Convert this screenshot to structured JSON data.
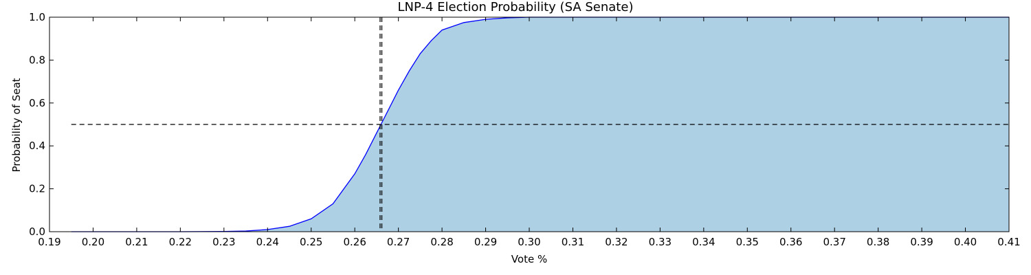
{
  "chart_data": {
    "type": "line",
    "title": "LNP-4 Election Probability (SA Senate)",
    "xlabel": "Vote %",
    "ylabel": "Probability of Seat",
    "xlim": [
      0.19,
      0.41
    ],
    "ylim": [
      0.0,
      1.0
    ],
    "x_ticks": [
      0.19,
      0.2,
      0.21,
      0.22,
      0.23,
      0.24,
      0.25,
      0.26,
      0.27,
      0.28,
      0.29,
      0.3,
      0.31,
      0.32,
      0.33,
      0.34,
      0.35,
      0.36,
      0.37,
      0.38,
      0.39,
      0.4,
      0.41
    ],
    "x_tick_labels": [
      "0.19",
      "0.20",
      "0.21",
      "0.22",
      "0.23",
      "0.24",
      "0.25",
      "0.26",
      "0.27",
      "0.28",
      "0.29",
      "0.30",
      "0.31",
      "0.32",
      "0.33",
      "0.34",
      "0.35",
      "0.36",
      "0.37",
      "0.38",
      "0.39",
      "0.40",
      "0.41"
    ],
    "y_ticks": [
      0.0,
      0.2,
      0.4,
      0.6,
      0.8,
      1.0
    ],
    "y_tick_labels": [
      "0.0",
      "0.2",
      "0.4",
      "0.6",
      "0.8",
      "1.0"
    ],
    "grid": false,
    "series": [
      {
        "color": "#0000ff",
        "x": [
          0.195,
          0.2,
          0.21,
          0.22,
          0.23,
          0.235,
          0.24,
          0.245,
          0.25,
          0.255,
          0.26,
          0.2625,
          0.265,
          0.266,
          0.2675,
          0.27,
          0.2725,
          0.275,
          0.2775,
          0.28,
          0.285,
          0.29,
          0.295,
          0.3,
          0.31,
          0.32,
          0.33,
          0.34,
          0.35,
          0.36,
          0.37,
          0.38,
          0.39,
          0.4,
          0.41
        ],
        "y": [
          0.0,
          0.0,
          0.0,
          0.0,
          0.001,
          0.003,
          0.01,
          0.025,
          0.06,
          0.13,
          0.27,
          0.36,
          0.46,
          0.5,
          0.56,
          0.66,
          0.75,
          0.83,
          0.89,
          0.94,
          0.975,
          0.99,
          0.997,
          1.0,
          1.0,
          1.0,
          1.0,
          1.0,
          1.0,
          1.0,
          1.0,
          1.0,
          1.0,
          1.0,
          1.0
        ]
      }
    ],
    "fill_color": "#aed0e4",
    "reference_lines": [
      {
        "orientation": "horizontal",
        "y": 0.5,
        "x_range": [
          0.195,
          0.41
        ],
        "style": "dashed",
        "color": "#000000"
      },
      {
        "orientation": "vertical",
        "x": 0.2658,
        "style": "dashed",
        "color": "#000000"
      },
      {
        "orientation": "vertical",
        "x": 0.2662,
        "style": "dashed",
        "color": "#000000"
      }
    ]
  }
}
